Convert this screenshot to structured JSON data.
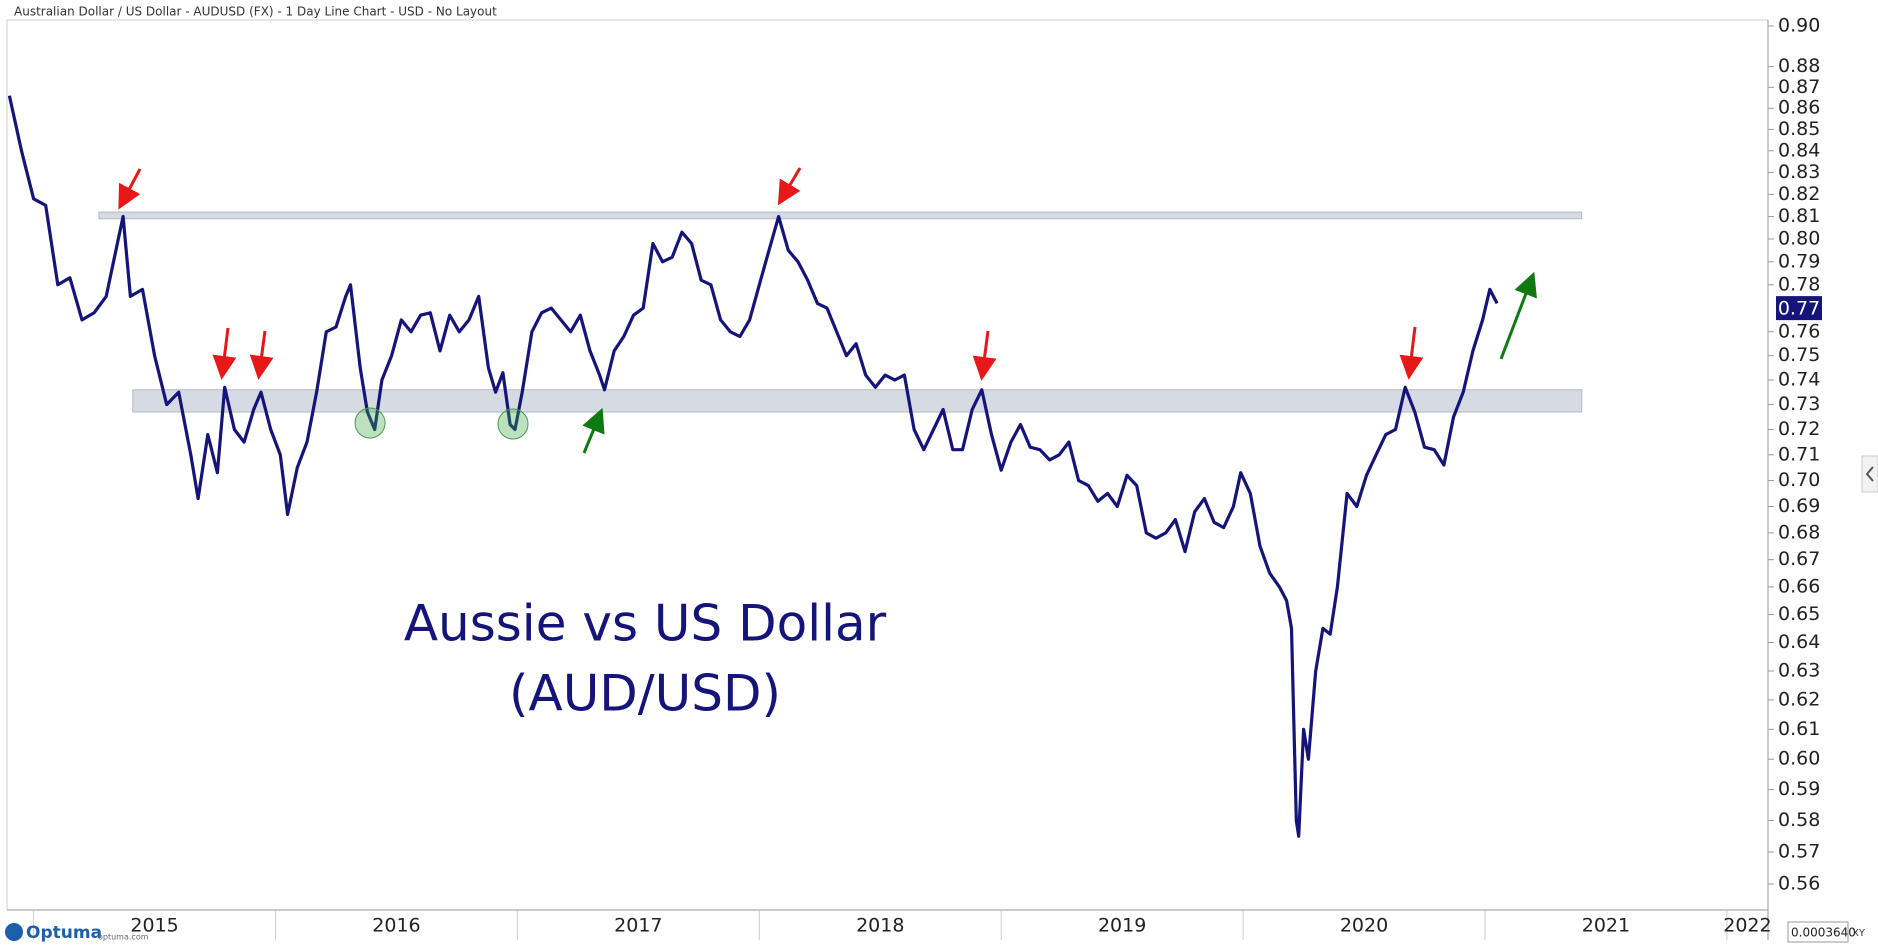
{
  "chart_data": {
    "type": "line",
    "title": "Australian Dollar / US Dollar - AUDUSD (FX) - 1 Day Line Chart - USD - No Layout",
    "annotations": [
      "Aussie vs US Dollar",
      "(AUD/USD)"
    ],
    "last_price": {
      "value": 0.77,
      "label": "0.77"
    },
    "footer": {
      "logo": "Optuma",
      "site": "optuma.com",
      "scale": "0.0003640",
      "mode": "XY"
    },
    "log_y": true,
    "grid": false,
    "xlim": [
      2014.89,
      2022.17
    ],
    "xticks": [
      2015,
      2016,
      2017,
      2018,
      2019,
      2020,
      2021,
      2022
    ],
    "ylim": [
      0.552,
      0.903
    ],
    "yticks": [
      {
        "value": 0.9,
        "label": "0.90"
      },
      0.88,
      0.87,
      0.86,
      0.85,
      0.84,
      0.83,
      0.82,
      0.81,
      {
        "value": 0.8,
        "label": "0.80"
      },
      0.79,
      0.78,
      0.76,
      0.75,
      0.74,
      0.73,
      0.72,
      0.71,
      {
        "value": 0.7,
        "label": "0.70"
      },
      0.69,
      0.68,
      0.67,
      0.66,
      0.65,
      0.64,
      0.63,
      0.62,
      0.61,
      {
        "value": 0.6,
        "label": "0.60"
      },
      0.59,
      0.58,
      0.57,
      0.56
    ],
    "bands": [
      {
        "from": 0.809,
        "to": 0.812,
        "x": [
          2015.27,
          2021.4
        ]
      },
      {
        "from": 0.727,
        "to": 0.736,
        "x": [
          2015.41,
          2021.4
        ]
      }
    ],
    "x": [
      2014.9,
      2014.95,
      2015.0,
      2015.05,
      2015.1,
      2015.15,
      2015.2,
      2015.25,
      2015.3,
      2015.35,
      2015.37,
      2015.4,
      2015.45,
      2015.5,
      2015.55,
      2015.6,
      2015.65,
      2015.68,
      2015.72,
      2015.76,
      2015.79,
      2015.83,
      2015.87,
      2015.91,
      2015.94,
      2015.98,
      2016.02,
      2016.05,
      2016.09,
      2016.13,
      2016.17,
      2016.21,
      2016.25,
      2016.29,
      2016.31,
      2016.35,
      2016.38,
      2016.41,
      2016.44,
      2016.48,
      2016.52,
      2016.56,
      2016.6,
      2016.64,
      2016.68,
      2016.72,
      2016.76,
      2016.8,
      2016.84,
      2016.88,
      2016.91,
      2016.94,
      2016.97,
      2016.99,
      2017.02,
      2017.06,
      2017.1,
      2017.14,
      2017.18,
      2017.22,
      2017.26,
      2017.3,
      2017.34,
      2017.36,
      2017.4,
      2017.44,
      2017.48,
      2017.52,
      2017.56,
      2017.6,
      2017.64,
      2017.68,
      2017.72,
      2017.76,
      2017.8,
      2017.84,
      2017.88,
      2017.92,
      2017.96,
      2018.0,
      2018.04,
      2018.08,
      2018.12,
      2018.16,
      2018.2,
      2018.24,
      2018.28,
      2018.32,
      2018.36,
      2018.4,
      2018.44,
      2018.48,
      2018.52,
      2018.56,
      2018.6,
      2018.64,
      2018.68,
      2018.72,
      2018.76,
      2018.8,
      2018.84,
      2018.88,
      2018.92,
      2018.96,
      2019.0,
      2019.04,
      2019.08,
      2019.12,
      2019.16,
      2019.2,
      2019.24,
      2019.28,
      2019.32,
      2019.36,
      2019.4,
      2019.44,
      2019.48,
      2019.52,
      2019.56,
      2019.6,
      2019.64,
      2019.68,
      2019.72,
      2019.76,
      2019.8,
      2019.84,
      2019.88,
      2019.92,
      2019.96,
      2019.99,
      2020.03,
      2020.07,
      2020.11,
      2020.15,
      2020.18,
      2020.2,
      2020.22,
      2020.23,
      2020.25,
      2020.27,
      2020.3,
      2020.33,
      2020.36,
      2020.39,
      2020.43,
      2020.47,
      2020.51,
      2020.55,
      2020.59,
      2020.63,
      2020.67,
      2020.71,
      2020.75,
      2020.79,
      2020.83,
      2020.87,
      2020.91,
      2020.95,
      2020.99,
      2021.02,
      2021.05
    ],
    "series": [
      {
        "color": "#14147a",
        "values": [
          0.866,
          0.84,
          0.818,
          0.815,
          0.78,
          0.783,
          0.765,
          0.768,
          0.775,
          0.8,
          0.81,
          0.775,
          0.778,
          0.75,
          0.73,
          0.735,
          0.71,
          0.693,
          0.718,
          0.703,
          0.737,
          0.72,
          0.715,
          0.728,
          0.735,
          0.72,
          0.71,
          0.687,
          0.705,
          0.715,
          0.735,
          0.76,
          0.762,
          0.775,
          0.78,
          0.745,
          0.727,
          0.72,
          0.74,
          0.75,
          0.765,
          0.76,
          0.767,
          0.768,
          0.752,
          0.767,
          0.76,
          0.765,
          0.775,
          0.745,
          0.735,
          0.743,
          0.722,
          0.72,
          0.735,
          0.76,
          0.768,
          0.77,
          0.765,
          0.76,
          0.767,
          0.752,
          0.742,
          0.736,
          0.752,
          0.758,
          0.767,
          0.77,
          0.798,
          0.79,
          0.792,
          0.803,
          0.798,
          0.782,
          0.78,
          0.765,
          0.76,
          0.758,
          0.765,
          0.78,
          0.795,
          0.81,
          0.795,
          0.79,
          0.782,
          0.772,
          0.77,
          0.76,
          0.75,
          0.755,
          0.742,
          0.737,
          0.742,
          0.74,
          0.742,
          0.72,
          0.712,
          0.72,
          0.728,
          0.712,
          0.712,
          0.728,
          0.736,
          0.718,
          0.704,
          0.715,
          0.722,
          0.713,
          0.712,
          0.708,
          0.71,
          0.715,
          0.7,
          0.698,
          0.692,
          0.695,
          0.69,
          0.702,
          0.698,
          0.68,
          0.678,
          0.68,
          0.685,
          0.673,
          0.688,
          0.693,
          0.684,
          0.682,
          0.69,
          0.703,
          0.695,
          0.675,
          0.665,
          0.66,
          0.655,
          0.645,
          0.58,
          0.575,
          0.61,
          0.6,
          0.63,
          0.645,
          0.643,
          0.66,
          0.695,
          0.69,
          0.702,
          0.71,
          0.718,
          0.72,
          0.737,
          0.727,
          0.713,
          0.712,
          0.706,
          0.725,
          0.735,
          0.752,
          0.765,
          0.778,
          0.772
        ]
      }
    ]
  }
}
